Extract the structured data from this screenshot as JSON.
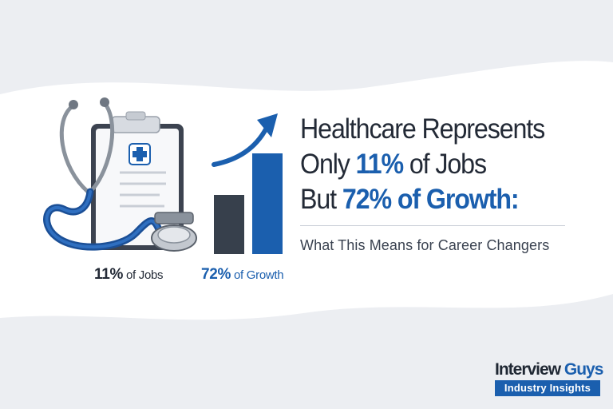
{
  "headline": {
    "line1": "Healthcare Represents",
    "line2_pre": "Only ",
    "line2_accent": "11%",
    "line2_post": " of Jobs",
    "line3_pre": "But ",
    "line3_accent": "72%",
    "line3_post": " of Growth:"
  },
  "subtitle": "What This Means for Career Changers",
  "stats": {
    "jobs_value": "11%",
    "jobs_label": " of Jobs",
    "growth_value": "72%",
    "growth_label": " of Growth"
  },
  "brand": {
    "name_part1": "Interview",
    "name_part2": " Guys",
    "tagline": "Industry Insights"
  },
  "chart_data": {
    "type": "bar",
    "categories": [
      "",
      ""
    ],
    "values": [
      11,
      72
    ],
    "colors": [
      "#37404c",
      "#1b5fae"
    ],
    "trend_arrow": "up"
  },
  "colors": {
    "accent": "#1b5fae",
    "dark": "#232a36",
    "background": "#eef0f3"
  },
  "icons": [
    "stethoscope-icon",
    "clipboard-icon",
    "medical-cross-icon",
    "trend-arrow-icon"
  ]
}
